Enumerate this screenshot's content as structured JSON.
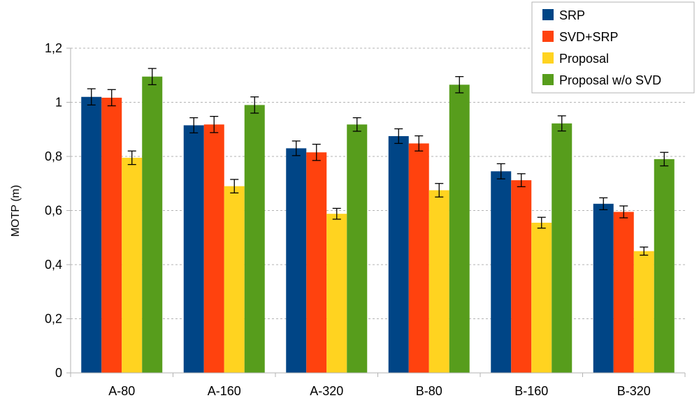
{
  "chart_data": {
    "type": "bar",
    "title": "",
    "xlabel": "",
    "ylabel": "MOTP (m)",
    "ylim": [
      0,
      1.2
    ],
    "ytick_step": 0.2,
    "ytick_labels": [
      "0",
      "0,2",
      "0,4",
      "0,6",
      "0,8",
      "1",
      "1,2"
    ],
    "grid": true,
    "legend_position": "top-right",
    "categories": [
      "A-80",
      "A-160",
      "A-320",
      "B-80",
      "B-160",
      "B-320"
    ],
    "series": [
      {
        "name": "SRP",
        "color": "#004586",
        "values": [
          1.02,
          0.915,
          0.83,
          0.875,
          0.745,
          0.625
        ],
        "errors": [
          0.03,
          0.028,
          0.027,
          0.027,
          0.028,
          0.022
        ]
      },
      {
        "name": "SVD+SRP",
        "color": "#ff420e",
        "values": [
          1.017,
          0.918,
          0.815,
          0.848,
          0.712,
          0.595
        ],
        "errors": [
          0.03,
          0.03,
          0.03,
          0.028,
          0.024,
          0.022
        ]
      },
      {
        "name": "Proposal",
        "color": "#ffd320",
        "values": [
          0.795,
          0.69,
          0.588,
          0.675,
          0.555,
          0.45
        ],
        "errors": [
          0.025,
          0.025,
          0.02,
          0.025,
          0.02,
          0.015
        ]
      },
      {
        "name": "Proposal w/o SVD",
        "color": "#579d1c",
        "values": [
          1.095,
          0.99,
          0.918,
          1.065,
          0.922,
          0.79
        ],
        "errors": [
          0.03,
          0.03,
          0.025,
          0.03,
          0.028,
          0.025
        ]
      }
    ]
  }
}
